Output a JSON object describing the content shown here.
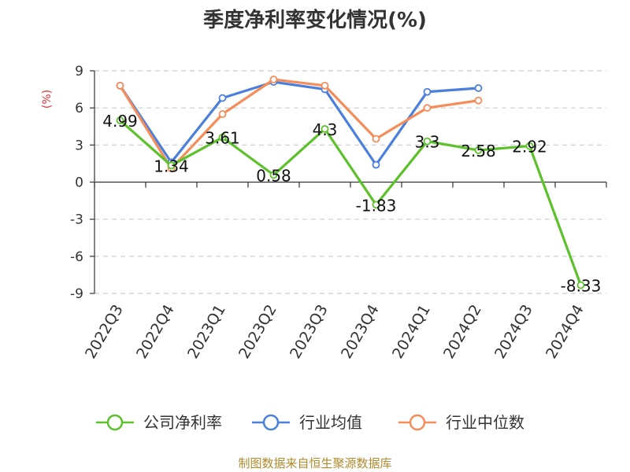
{
  "chart_data": {
    "type": "line",
    "title": "季度净利率变化情况(%)",
    "ylabel": "(%)",
    "categories": [
      "2022Q3",
      "2022Q4",
      "2023Q1",
      "2023Q2",
      "2023Q3",
      "2023Q4",
      "2024Q1",
      "2024Q2",
      "2024Q3",
      "2024Q4"
    ],
    "ylim": [
      -9,
      9
    ],
    "yticks": [
      "9",
      "6",
      "3",
      "0",
      "-3",
      "-6",
      "-9"
    ],
    "grid": true,
    "legend_position": "bottom",
    "series": [
      {
        "name": "公司净利率",
        "color": "#5cc12a",
        "values": [
          4.99,
          1.34,
          3.61,
          0.58,
          4.3,
          -1.83,
          3.3,
          2.58,
          2.92,
          -8.33
        ],
        "labels": [
          "4.99",
          "1.34",
          "3.61",
          "0.58",
          "4.3",
          "-1.83",
          "3.3",
          "2.58",
          "2.92",
          "-8.33"
        ]
      },
      {
        "name": "行业均值",
        "color": "#4a7fdc",
        "values": [
          7.8,
          1.6,
          6.8,
          8.1,
          7.5,
          1.4,
          7.3,
          7.6,
          null,
          null
        ]
      },
      {
        "name": "行业中位数",
        "color": "#f58d5a",
        "values": [
          7.8,
          1.1,
          5.5,
          8.3,
          7.8,
          3.5,
          6.0,
          6.6,
          null,
          null
        ]
      }
    ]
  },
  "source": "制图数据来自恒生聚源数据库"
}
